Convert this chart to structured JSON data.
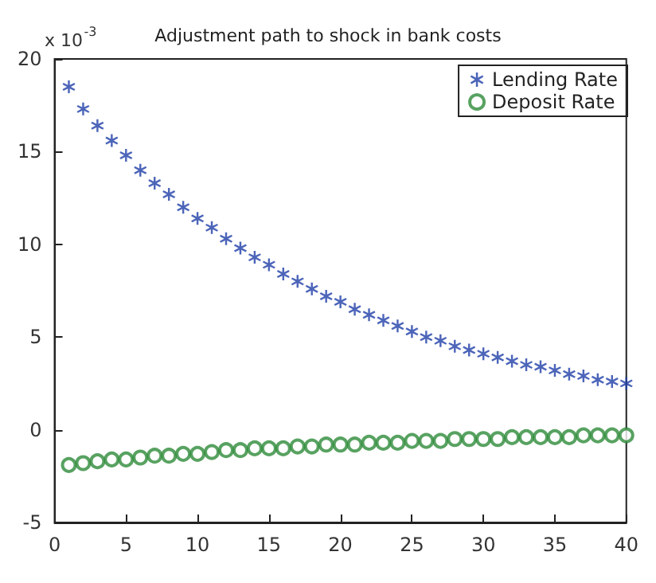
{
  "chart_data": {
    "type": "scatter",
    "title": "Adjustment path to shock in bank costs",
    "annotations": [
      "x 10$^{-3}$"
    ],
    "x": [
      1,
      2,
      3,
      4,
      5,
      6,
      7,
      8,
      9,
      10,
      11,
      12,
      13,
      14,
      15,
      16,
      17,
      18,
      19,
      20,
      21,
      22,
      23,
      24,
      25,
      26,
      27,
      28,
      29,
      30,
      31,
      32,
      33,
      34,
      35,
      36,
      37,
      38,
      39,
      40
    ],
    "series": [
      {
        "name": "Lending Rate",
        "color": "#1f3fa8",
        "marker": "cross",
        "values": [
          18.5,
          17.3,
          16.4,
          15.6,
          14.8,
          14.0,
          13.3,
          12.7,
          12.0,
          11.4,
          10.9,
          10.3,
          9.8,
          9.3,
          8.9,
          8.4,
          8.0,
          7.6,
          7.2,
          6.9,
          6.5,
          6.2,
          5.9,
          5.6,
          5.3,
          5.0,
          4.8,
          4.5,
          4.3,
          4.1,
          3.9,
          3.7,
          3.5,
          3.4,
          3.2,
          3.0,
          2.9,
          2.7,
          2.6,
          2.5
        ]
      },
      {
        "name": "Deposit Rate",
        "color": "#2e8b3a",
        "marker": "circle",
        "values": [
          -1.9,
          -1.8,
          -1.7,
          -1.6,
          -1.6,
          -1.5,
          -1.4,
          -1.4,
          -1.3,
          -1.3,
          -1.2,
          -1.1,
          -1.1,
          -1.0,
          -1.0,
          -1.0,
          -0.9,
          -0.9,
          -0.8,
          -0.8,
          -0.8,
          -0.7,
          -0.7,
          -0.7,
          -0.6,
          -0.6,
          -0.6,
          -0.5,
          -0.5,
          -0.5,
          -0.5,
          -0.4,
          -0.4,
          -0.4,
          -0.4,
          -0.4,
          -0.3,
          -0.3,
          -0.3,
          -0.3
        ]
      }
    ],
    "xlim": [
      0,
      40
    ],
    "xticks": [
      0,
      5,
      10,
      15,
      20,
      25,
      30,
      35,
      40
    ],
    "ylim": [
      -5,
      20
    ],
    "yticks": [
      -5,
      0,
      5,
      10,
      15,
      20
    ],
    "grid": false,
    "legend": "top right"
  }
}
